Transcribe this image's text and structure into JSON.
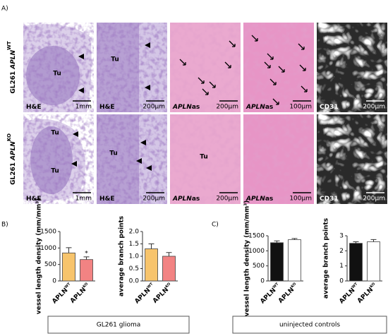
{
  "figure": {
    "panel_letters": [
      "A)",
      "B)",
      "C)"
    ],
    "rows": [
      {
        "label": [
          "GL261",
          "APLN",
          "WT"
        ],
        "cells": [
          {
            "marks": [
              "Tu"
            ],
            "stain": [
              "H&E"
            ],
            "scale": "1mm"
          },
          {
            "marks": [
              "Tu"
            ],
            "stain": [
              "H&E"
            ],
            "scale": "200µm"
          },
          {
            "stain": [
              "APLN",
              "as"
            ],
            "scale": "200µm"
          },
          {
            "stain": [
              "APLN",
              "as"
            ],
            "scale": "100µm"
          },
          {
            "stain": [
              "CD31"
            ],
            "scale": "200µm"
          }
        ]
      },
      {
        "label": [
          "GL261",
          "APLN",
          "KO"
        ],
        "cells": [
          {
            "marks": [
              "Tu",
              "Tu"
            ],
            "stain": [
              "H&E"
            ],
            "scale": "1mm"
          },
          {
            "marks": [
              "Tu"
            ],
            "stain": [
              "H&E"
            ],
            "scale": "200µm"
          },
          {
            "marks": [
              "Tu"
            ],
            "stain": [
              "APLN",
              "as"
            ],
            "scale": "200µm"
          },
          {
            "stain": [
              "APLN",
              "as"
            ],
            "scale": "100µm"
          },
          {
            "stain": [
              "CD31"
            ],
            "scale": "200µm"
          }
        ]
      }
    ],
    "groups": [
      "GL261 glioma",
      "uninjected controls"
    ]
  },
  "chart_data": [
    {
      "type": "bar",
      "y_label": "vessel length density (mm/mm³)",
      "categories": [
        "APLN",
        "APLN"
      ],
      "category_superscripts": [
        "WT",
        "KO"
      ],
      "values": [
        850,
        650
      ],
      "errors": [
        160,
        80
      ],
      "colors": [
        "#f7c46c",
        "#f28383"
      ],
      "value_annotations": [
        null,
        "*"
      ],
      "ylim": [
        0,
        1500
      ],
      "yticks": [
        0,
        500,
        1000,
        1500
      ]
    },
    {
      "type": "bar",
      "y_label": "average branch points",
      "categories": [
        "APLN",
        "APLN"
      ],
      "category_superscripts": [
        "WT",
        "KO"
      ],
      "values": [
        1.3,
        1.0
      ],
      "errors": [
        0.2,
        0.15
      ],
      "colors": [
        "#f7c46c",
        "#f28383"
      ],
      "ylim": [
        0,
        2
      ],
      "yticks": [
        {
          "value": 0,
          "label": "0.0"
        },
        {
          "value": 0.5,
          "label": "0.5"
        },
        {
          "value": 1,
          "label": "1.0"
        },
        {
          "value": 1.5,
          "label": "1.5"
        },
        {
          "value": 2,
          "label": "2.0"
        }
      ]
    },
    {
      "type": "bar",
      "y_label": "vessel length density (mm/mm³)",
      "categories": [
        "APLN",
        "APLN"
      ],
      "category_superscripts": [
        "WT",
        "KO"
      ],
      "values": [
        1270,
        1370
      ],
      "errors": [
        60,
        40
      ],
      "colors": [
        "#111111",
        "#ffffff"
      ],
      "ylim": [
        0,
        1500
      ],
      "yticks": [
        0,
        500,
        1000,
        1500
      ]
    },
    {
      "type": "bar",
      "y_label": "average branch points",
      "categories": [
        "APLN",
        "APLN"
      ],
      "category_superscripts": [
        "WT",
        "KO"
      ],
      "values": [
        2.5,
        2.6
      ],
      "errors": [
        0.1,
        0.15
      ],
      "colors": [
        "#111111",
        "#ffffff"
      ],
      "ylim": [
        0,
        3
      ],
      "yticks": [
        0,
        1,
        2,
        3
      ]
    }
  ]
}
